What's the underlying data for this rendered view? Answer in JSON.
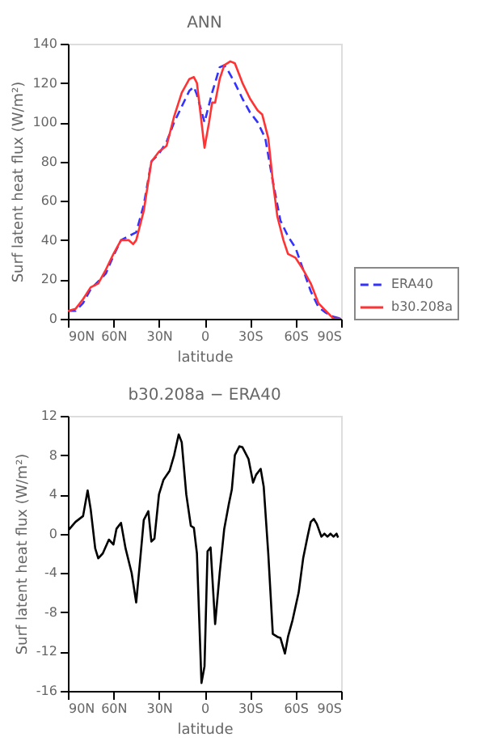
{
  "chart_data": [
    {
      "type": "line",
      "title": "ANN",
      "xlabel": "latitude",
      "ylabel": "Surf latent heat flux (W/m²)",
      "xlim": [
        90,
        -90
      ],
      "ylim": [
        0,
        140
      ],
      "xticks": [
        {
          "value": 90,
          "label": "90N"
        },
        {
          "value": 60,
          "label": "60N"
        },
        {
          "value": 30,
          "label": "30N"
        },
        0,
        {
          "value": -30,
          "label": "30S"
        },
        {
          "value": -60,
          "label": "60S"
        },
        {
          "value": -90,
          "label": "90S"
        }
      ],
      "yticks": [
        0,
        20,
        40,
        60,
        80,
        100,
        120,
        140
      ],
      "grid": false,
      "legend": "bottom right",
      "marker": "none",
      "series": [
        {
          "name": "ERA40",
          "color": "#3333ff",
          "line_style": "dashed",
          "x": [
            90,
            85,
            80,
            75,
            70,
            65,
            60,
            55,
            50,
            45,
            40,
            35,
            30,
            25,
            20,
            15,
            10,
            7,
            5,
            0,
            -5,
            -10,
            -13,
            -15,
            -20,
            -25,
            -30,
            -35,
            -40,
            -45,
            -50,
            -55,
            -60,
            -65,
            -70,
            -75,
            -80,
            -85,
            -90
          ],
          "values": [
            4,
            4,
            8,
            15,
            19,
            23,
            32,
            40,
            42,
            44,
            58,
            80,
            84,
            90,
            100,
            108,
            116,
            118,
            114,
            100,
            115,
            128,
            129,
            127,
            120,
            112,
            105,
            100,
            92,
            70,
            50,
            42,
            36,
            25,
            14,
            6,
            3,
            1,
            0
          ]
        },
        {
          "name": "b30.208a",
          "color": "#ff3333",
          "line_style": "solid",
          "x": [
            90,
            85,
            80,
            75,
            70,
            65,
            60,
            55,
            50,
            47,
            45,
            40,
            35,
            30,
            25,
            20,
            15,
            10,
            7,
            5,
            0,
            -3,
            -5,
            -7,
            -10,
            -13,
            -17,
            -20,
            -25,
            -30,
            -35,
            -38,
            -42,
            -45,
            -48,
            -52,
            -55,
            -60,
            -65,
            -70,
            -75,
            -80,
            -85,
            -90
          ],
          "values": [
            4,
            5,
            10,
            16,
            18,
            25,
            33,
            40,
            40,
            38,
            40,
            55,
            80,
            85,
            88,
            103,
            115,
            122,
            123,
            120,
            87,
            100,
            110,
            110,
            122,
            129,
            131,
            130,
            120,
            112,
            106,
            104,
            92,
            70,
            52,
            40,
            33,
            31,
            25,
            18,
            8,
            4,
            0,
            0
          ]
        }
      ]
    },
    {
      "type": "line",
      "title": "b30.208a − ERA40",
      "xlabel": "latitude",
      "ylabel": "Surf latent heat flux (W/m²)",
      "xlim": [
        90,
        -90
      ],
      "ylim": [
        -16,
        12
      ],
      "xticks": [
        {
          "value": 90,
          "label": "90N"
        },
        {
          "value": 60,
          "label": "60N"
        },
        {
          "value": 30,
          "label": "30N"
        },
        0,
        {
          "value": -30,
          "label": "30S"
        },
        {
          "value": -60,
          "label": "60S"
        },
        {
          "value": -90,
          "label": "90S"
        }
      ],
      "yticks": [
        -16,
        -12,
        -8,
        -4,
        0,
        4,
        8,
        12
      ],
      "grid": false,
      "legend": false,
      "marker": "none",
      "series": [
        {
          "color": "#000000",
          "line_style": "solid",
          "x": [
            90,
            85,
            80,
            77,
            75,
            72,
            70,
            67,
            63,
            60,
            58,
            55,
            52,
            48,
            45,
            42,
            40,
            37,
            35,
            33,
            30,
            27,
            23,
            20,
            17,
            15,
            12,
            9,
            7,
            5,
            2,
            0,
            -2,
            -4,
            -7,
            -10,
            -13,
            -16,
            -18,
            -20,
            -23,
            -25,
            -29,
            -32,
            -34,
            -37,
            -39,
            -42,
            -45,
            -48,
            -50,
            -53,
            -55,
            -58,
            -62,
            -65,
            -68,
            -70,
            -72,
            -74,
            -77,
            -79,
            -81,
            -83,
            -85,
            -87,
            -88
          ],
          "values": [
            0.3,
            1.2,
            1.8,
            4.4,
            2.5,
            -1.5,
            -2.5,
            -2,
            -0.6,
            -1.1,
            0.5,
            1.1,
            -1.5,
            -4,
            -7,
            -2,
            1.4,
            2.3,
            -0.8,
            -0.5,
            4,
            5.5,
            6.4,
            8,
            10.1,
            9.3,
            4,
            0.8,
            0.6,
            -2,
            -15.2,
            -13.5,
            -1.8,
            -1.4,
            -9.2,
            -4,
            0.5,
            3,
            4.5,
            8,
            8.9,
            8.8,
            7.6,
            5.2,
            6,
            6.6,
            4.8,
            -2,
            -10.2,
            -10.5,
            -10.6,
            -12.2,
            -10.5,
            -8.8,
            -6,
            -2.5,
            -0.2,
            1.2,
            1.5,
            1,
            -0.3,
            0,
            -0.3,
            0,
            -0.3,
            0,
            -0.4
          ]
        }
      ]
    }
  ]
}
